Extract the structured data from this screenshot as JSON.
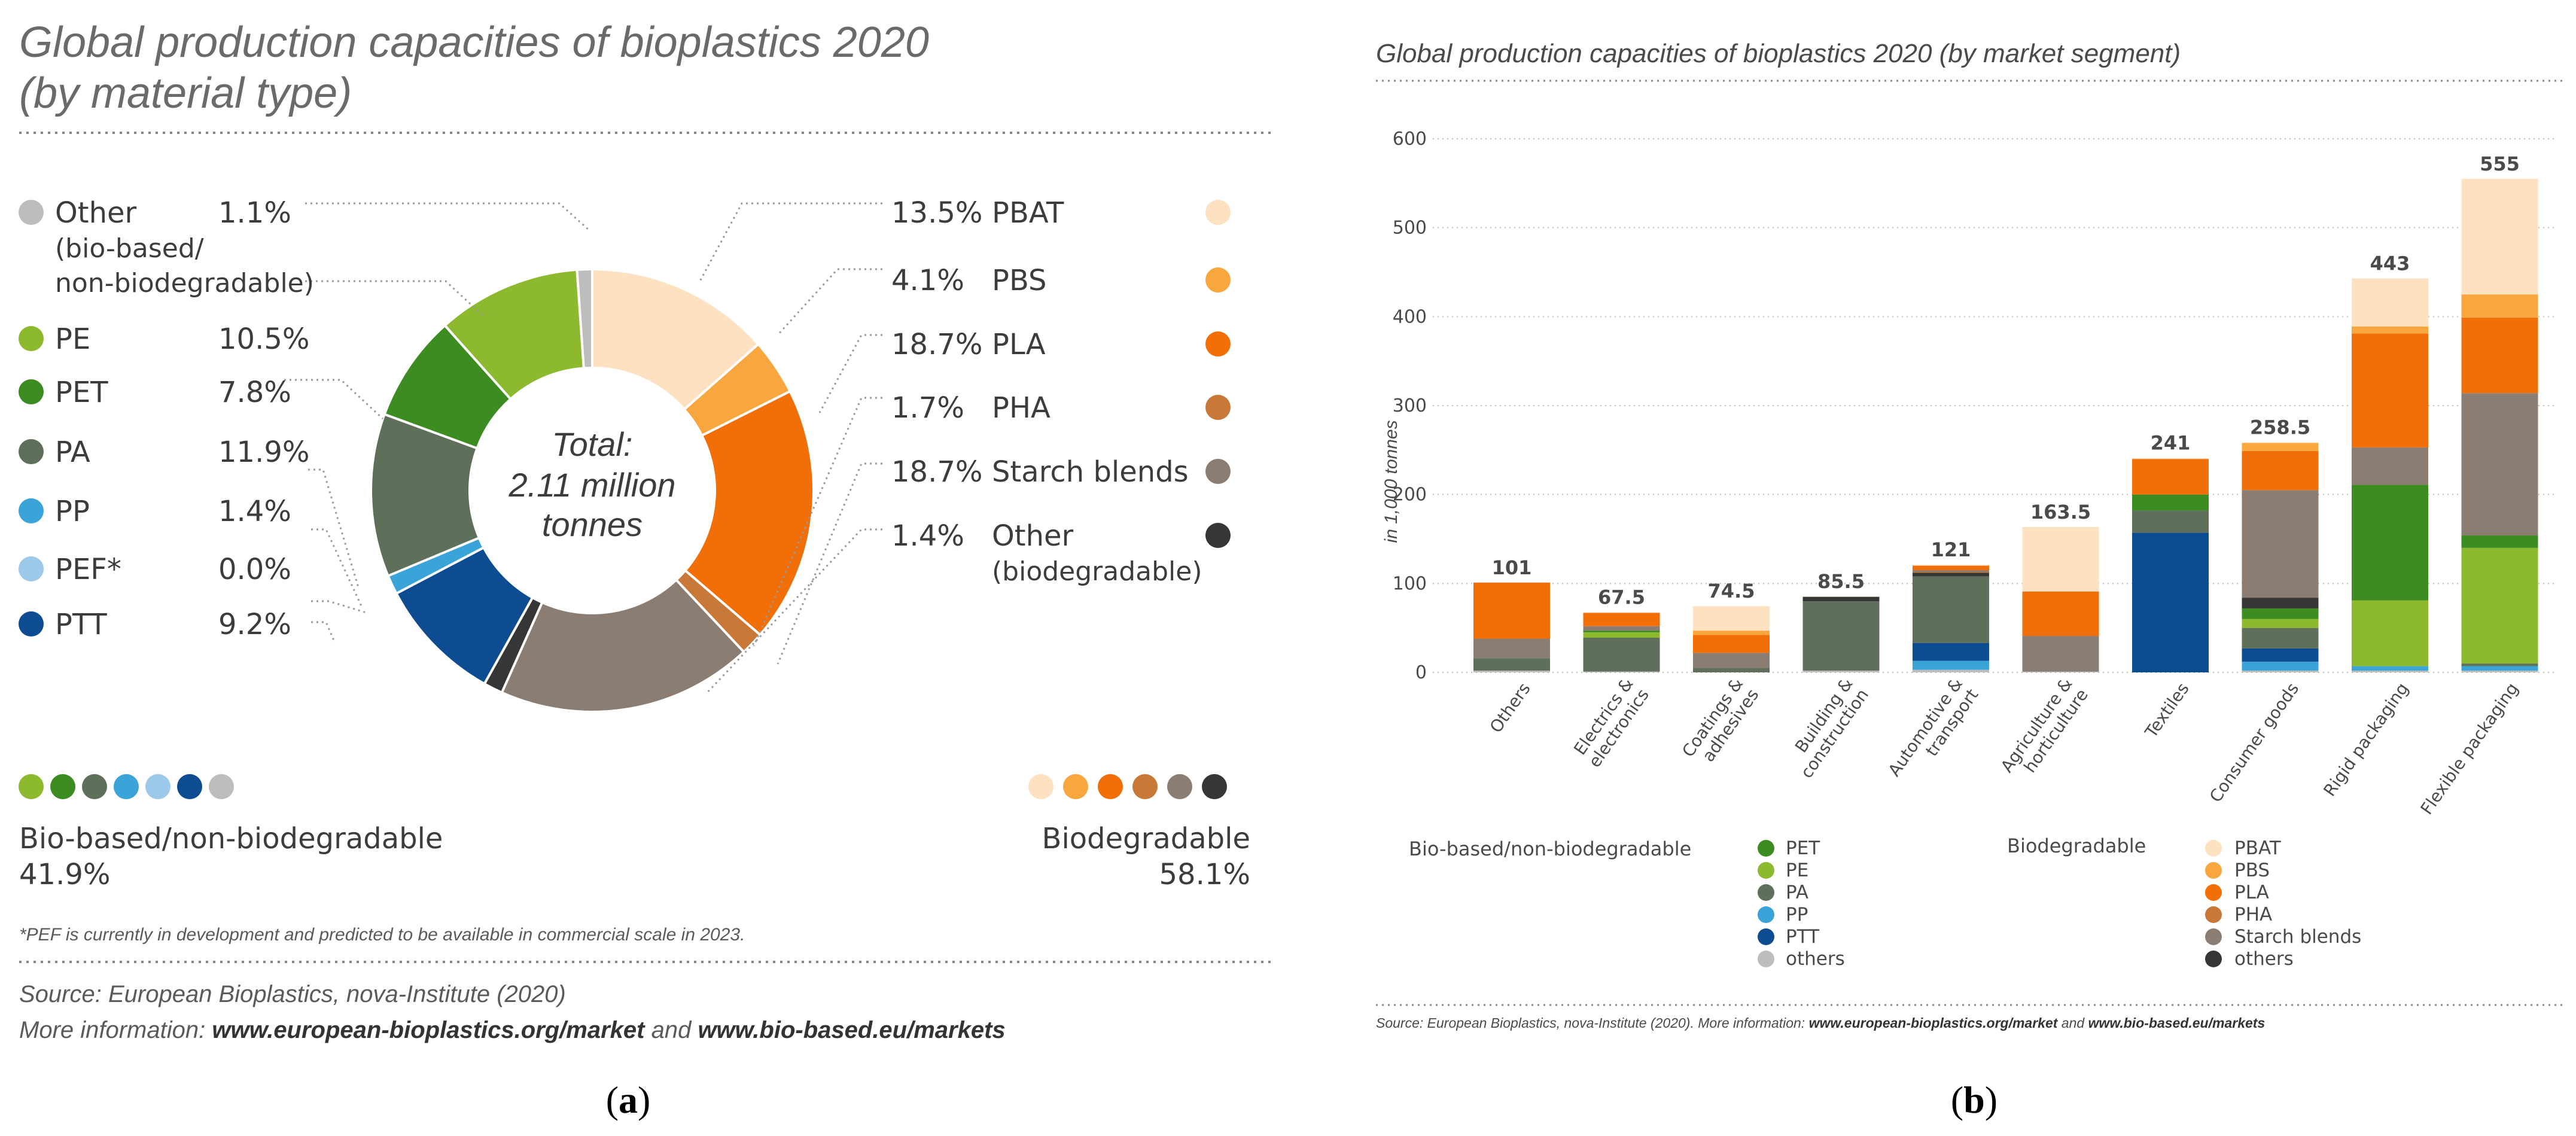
{
  "colors": {
    "text": "#3c3c3c",
    "grey_text": "#5a5a5a",
    "dotted": "#888888",
    "PE": "#8db92e",
    "PET": "#3d8c22",
    "PA": "#5f705a",
    "PP": "#3aa4d8",
    "PEF": "#9cc8ea",
    "PTT": "#0d4c91",
    "other_bb": "#bdbdbd",
    "PBAT": "#fde1c1",
    "PBS": "#f8a73e",
    "PLA": "#f26f08",
    "PHA": "#c87837",
    "starch": "#8b7d71",
    "other_bd": "#363636"
  },
  "panel_a": {
    "title_line1": "Global production capacities of bioplastics 2020",
    "title_line2": "(by material type)",
    "center_line1": "Total:",
    "center_line2": "2.11 million",
    "center_line3": "tonnes",
    "left_labels": [
      {
        "key": "other_bb",
        "name": "Other",
        "sub1": "(bio-based/",
        "sub2": "non-biodegradable)",
        "pct": "1.1%"
      },
      {
        "key": "PE",
        "name": "PE",
        "pct": "10.5%"
      },
      {
        "key": "PET",
        "name": "PET",
        "pct": "7.8%"
      },
      {
        "key": "PA",
        "name": "PA",
        "pct": "11.9%"
      },
      {
        "key": "PP",
        "name": "PP",
        "pct": "1.4%"
      },
      {
        "key": "PEF",
        "name": "PEF*",
        "pct": "0.0%"
      },
      {
        "key": "PTT",
        "name": "PTT",
        "pct": "9.2%"
      }
    ],
    "right_labels": [
      {
        "key": "PBAT",
        "name": "PBAT",
        "pct": "13.5%"
      },
      {
        "key": "PBS",
        "name": "PBS",
        "pct": "4.1%"
      },
      {
        "key": "PLA",
        "name": "PLA",
        "pct": "18.7%"
      },
      {
        "key": "PHA",
        "name": "PHA",
        "pct": "1.7%"
      },
      {
        "key": "starch",
        "name": "Starch blends",
        "pct": "18.7%"
      },
      {
        "key": "other_bd",
        "name": "Other",
        "sub1": "(biodegradable)",
        "pct": "1.4%"
      }
    ],
    "group_left_label": "Bio-based/non-biodegradable",
    "group_left_pct": "41.9%",
    "group_right_label": "Biodegradable",
    "group_right_pct": "58.1%",
    "footnote": "*PEF is currently in development and predicted to be available in commercial scale in 2023.",
    "source_line": "Source: European Bioplastics, nova-Institute (2020)",
    "more_prefix": "More information: ",
    "more_link1": "www.european-bioplastics.org/market",
    "more_and": " and ",
    "more_link2": "www.bio-based.eu/markets",
    "caption": "a"
  },
  "panel_b": {
    "title": "Global production capacities of bioplastics 2020 (by market segment)",
    "ylabel": "in 1,000 tonnes",
    "legend_left_title": "Bio-based/non-biodegradable",
    "legend_right_title": "Biodegradable",
    "legend_left": [
      {
        "key": "PET",
        "name": "PET"
      },
      {
        "key": "PE",
        "name": "PE"
      },
      {
        "key": "PA",
        "name": "PA"
      },
      {
        "key": "PP",
        "name": "PP"
      },
      {
        "key": "PTT",
        "name": "PTT"
      },
      {
        "key": "other_bb",
        "name": "others"
      }
    ],
    "legend_right": [
      {
        "key": "PBAT",
        "name": "PBAT"
      },
      {
        "key": "PBS",
        "name": "PBS"
      },
      {
        "key": "PLA",
        "name": "PLA"
      },
      {
        "key": "PHA",
        "name": "PHA"
      },
      {
        "key": "starch",
        "name": "Starch blends"
      },
      {
        "key": "other_bd",
        "name": "others"
      }
    ],
    "source_prefix": "Source: European Bioplastics, nova-Institute (2020). More information: ",
    "source_link1": "www.european-bioplastics.org/market",
    "source_and": " and ",
    "source_link2": "www.bio-based.eu/markets",
    "caption": "b"
  },
  "chart_data": [
    {
      "type": "pie",
      "title": "Global production capacities of bioplastics 2020 (by material type)",
      "total_label": "Total: 2.11 million tonnes",
      "slices": [
        {
          "key": "PBAT",
          "label": "PBAT",
          "value": 13.5
        },
        {
          "key": "PBS",
          "label": "PBS",
          "value": 4.1
        },
        {
          "key": "PLA",
          "label": "PLA",
          "value": 18.7
        },
        {
          "key": "PHA",
          "label": "PHA",
          "value": 1.7
        },
        {
          "key": "starch",
          "label": "Starch blends",
          "value": 18.7
        },
        {
          "key": "other_bd",
          "label": "Other (biodegradable)",
          "value": 1.4
        },
        {
          "key": "PTT",
          "label": "PTT",
          "value": 9.2
        },
        {
          "key": "PEF",
          "label": "PEF*",
          "value": 0.0
        },
        {
          "key": "PP",
          "label": "PP",
          "value": 1.4
        },
        {
          "key": "PA",
          "label": "PA",
          "value": 11.9
        },
        {
          "key": "PET",
          "label": "PET",
          "value": 7.8
        },
        {
          "key": "PE",
          "label": "PE",
          "value": 10.5
        },
        {
          "key": "other_bb",
          "label": "Other (bio-based/non-biodegradable)",
          "value": 1.1
        }
      ],
      "groups": [
        {
          "name": "Bio-based/non-biodegradable",
          "value": 41.9
        },
        {
          "name": "Biodegradable",
          "value": 58.1
        }
      ]
    },
    {
      "type": "bar",
      "stacked": true,
      "title": "Global production capacities of bioplastics 2020 (by market segment)",
      "ylabel": "in 1,000 tonnes",
      "ylim": [
        0,
        600
      ],
      "yticks": [
        0,
        100,
        200,
        300,
        400,
        500,
        600
      ],
      "categories": [
        {
          "line1": "Others",
          "line2": ""
        },
        {
          "line1": "Electrics &",
          "line2": "electronics"
        },
        {
          "line1": "Coatings &",
          "line2": "adhesives"
        },
        {
          "line1": "Building &",
          "line2": "construction"
        },
        {
          "line1": "Automotive &",
          "line2": "transport"
        },
        {
          "line1": "Agriculture &",
          "line2": "horticulture"
        },
        {
          "line1": "Textiles",
          "line2": ""
        },
        {
          "line1": "Consumer goods",
          "line2": ""
        },
        {
          "line1": "Rigid packaging",
          "line2": ""
        },
        {
          "line1": "Flexible packaging",
          "line2": ""
        }
      ],
      "totals": [
        "101",
        "67.5",
        "74.5",
        "85.5",
        "121",
        "163.5",
        "241",
        "258.5",
        "443",
        "555"
      ],
      "stack_order": [
        "other_bb",
        "PP",
        "PTT",
        "PA",
        "PE",
        "PET",
        "other_bd",
        "PHA",
        "starch",
        "PLA",
        "PBS",
        "PBAT"
      ],
      "series": [
        {
          "key": "other_bb",
          "name": "others (bio-based)",
          "values": [
            2,
            1,
            0,
            2,
            3,
            1,
            0,
            2,
            2,
            2
          ]
        },
        {
          "key": "PP",
          "name": "PP",
          "values": [
            0,
            0,
            0,
            0,
            10,
            0,
            0,
            10,
            5,
            5
          ]
        },
        {
          "key": "PTT",
          "name": "PTT",
          "values": [
            0,
            0,
            0,
            0,
            20,
            0,
            157,
            15,
            0,
            0
          ]
        },
        {
          "key": "PA",
          "name": "PA",
          "values": [
            14,
            38,
            5,
            78,
            75,
            0,
            25,
            23,
            0,
            3
          ]
        },
        {
          "key": "PE",
          "name": "PE",
          "values": [
            0,
            6,
            0,
            0,
            0,
            0,
            0,
            10,
            74,
            130
          ]
        },
        {
          "key": "PET",
          "name": "PET",
          "values": [
            0,
            2,
            0,
            0,
            0,
            0,
            18,
            12,
            130,
            14
          ]
        },
        {
          "key": "other_bd",
          "name": "others (biodegradable)",
          "values": [
            0,
            0,
            0,
            5,
            4,
            0,
            0,
            12,
            0,
            0
          ]
        },
        {
          "key": "PHA",
          "name": "PHA",
          "values": [
            0,
            0,
            0,
            0,
            1,
            0,
            0,
            0,
            0,
            0
          ]
        },
        {
          "key": "starch",
          "name": "Starch blends",
          "values": [
            22,
            5,
            17,
            0,
            2,
            40,
            0,
            121,
            42,
            160
          ]
        },
        {
          "key": "PLA",
          "name": "PLA",
          "values": [
            63,
            15,
            20,
            0,
            5,
            50,
            40,
            44,
            128,
            85
          ]
        },
        {
          "key": "PBS",
          "name": "PBS",
          "values": [
            0,
            0,
            5,
            0,
            0,
            0,
            0,
            9,
            8,
            26
          ]
        },
        {
          "key": "PBAT",
          "name": "PBAT",
          "values": [
            0,
            0.5,
            27.5,
            0.5,
            1,
            72.5,
            1,
            0.5,
            54,
            130
          ]
        }
      ]
    }
  ]
}
